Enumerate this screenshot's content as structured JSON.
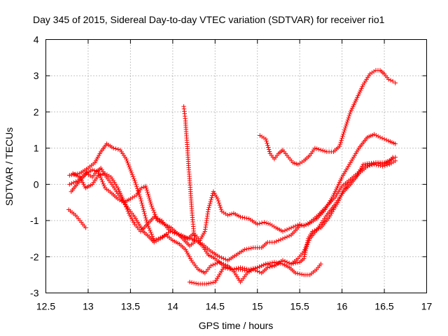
{
  "chart_data": {
    "type": "scatter",
    "title": "Day 345 of 2015, Sidereal Day-to-day VTEC variation (SDTVAR) for receiver rio1",
    "xlabel": "GPS time / hours",
    "ylabel": "SDTVAR / TECUs",
    "xlim": [
      12.5,
      17
    ],
    "ylim": [
      -3,
      4
    ],
    "x_ticks": [
      12.5,
      13,
      13.5,
      14,
      14.5,
      15,
      15.5,
      16,
      16.5,
      17
    ],
    "x_tick_labels": [
      "12.5",
      "13",
      "13.5",
      "14",
      "14.5",
      "15",
      "15.5",
      "16",
      "16.5",
      "17"
    ],
    "y_ticks": [
      -3,
      -2,
      -1,
      0,
      1,
      2,
      3,
      4
    ],
    "y_tick_labels": [
      "-3",
      "-2",
      "-1",
      "0",
      "1",
      "2",
      "3",
      "4"
    ],
    "grid": true,
    "marker": "+",
    "color": "#ff0000",
    "series": [
      {
        "name": "s1",
        "points": [
          [
            12.77,
            -0.7
          ],
          [
            12.85,
            -0.85
          ],
          [
            12.92,
            -1.05
          ],
          [
            12.97,
            -1.2
          ]
        ]
      },
      {
        "name": "s2",
        "points": [
          [
            12.78,
            0.25
          ],
          [
            12.9,
            0.3
          ],
          [
            13.0,
            0.45
          ],
          [
            13.08,
            0.6
          ],
          [
            13.15,
            0.9
          ],
          [
            13.22,
            1.12
          ],
          [
            13.3,
            1.0
          ],
          [
            13.38,
            0.95
          ],
          [
            13.45,
            0.7
          ],
          [
            13.55,
            0.1
          ],
          [
            13.62,
            -0.4
          ],
          [
            13.7,
            -1.1
          ],
          [
            13.78,
            -1.55
          ],
          [
            13.88,
            -1.45
          ],
          [
            13.97,
            -1.3
          ],
          [
            14.05,
            -1.35
          ],
          [
            14.12,
            -1.45
          ],
          [
            14.2,
            -1.5
          ],
          [
            14.28,
            -1.55
          ],
          [
            14.35,
            -1.7
          ],
          [
            14.42,
            -1.95
          ],
          [
            14.5,
            -2.05
          ],
          [
            14.6,
            -2.25
          ],
          [
            14.7,
            -2.35
          ],
          [
            14.8,
            -2.3
          ],
          [
            14.9,
            -2.35
          ],
          [
            15.0,
            -2.3
          ],
          [
            15.1,
            -2.2
          ],
          [
            15.2,
            -2.15
          ],
          [
            15.3,
            -2.2
          ],
          [
            15.38,
            -2.3
          ],
          [
            15.45,
            -2.45
          ],
          [
            15.55,
            -2.5
          ],
          [
            15.62,
            -2.5
          ],
          [
            15.7,
            -2.35
          ],
          [
            15.75,
            -2.2
          ]
        ]
      },
      {
        "name": "s3",
        "points": [
          [
            12.78,
            0.0
          ],
          [
            12.88,
            0.1
          ],
          [
            12.97,
            0.3
          ],
          [
            13.05,
            0.4
          ],
          [
            13.12,
            0.35
          ],
          [
            13.2,
            -0.1
          ],
          [
            13.28,
            -0.25
          ],
          [
            13.35,
            -0.4
          ],
          [
            13.42,
            -0.5
          ],
          [
            13.5,
            -0.4
          ],
          [
            13.57,
            -0.3
          ],
          [
            13.63,
            -0.1
          ],
          [
            13.68,
            -0.05
          ],
          [
            13.75,
            -0.6
          ],
          [
            13.82,
            -1.0
          ],
          [
            13.9,
            -1.1
          ],
          [
            13.98,
            -1.2
          ],
          [
            14.05,
            -1.35
          ],
          [
            14.12,
            -1.5
          ],
          [
            14.2,
            -1.7
          ],
          [
            14.28,
            -1.55
          ],
          [
            14.35,
            -1.65
          ],
          [
            14.45,
            -1.85
          ],
          [
            14.55,
            -2.0
          ],
          [
            14.65,
            -2.1
          ],
          [
            14.75,
            -1.95
          ],
          [
            14.85,
            -1.8
          ],
          [
            14.95,
            -1.75
          ],
          [
            15.05,
            -1.75
          ],
          [
            15.12,
            -1.6
          ],
          [
            15.2,
            -1.6
          ],
          [
            15.3,
            -1.5
          ],
          [
            15.4,
            -1.4
          ],
          [
            15.5,
            -1.15
          ],
          [
            15.6,
            -1.1
          ],
          [
            15.7,
            -0.95
          ],
          [
            15.8,
            -0.7
          ],
          [
            15.9,
            -0.3
          ],
          [
            16.0,
            0.2
          ],
          [
            16.1,
            0.6
          ],
          [
            16.2,
            1.0
          ],
          [
            16.3,
            1.3
          ],
          [
            16.38,
            1.38
          ],
          [
            16.45,
            1.3
          ],
          [
            16.55,
            1.2
          ],
          [
            16.63,
            1.12
          ]
        ]
      },
      {
        "name": "s4",
        "points": [
          [
            12.8,
            -0.2
          ],
          [
            12.9,
            0.1
          ],
          [
            12.98,
            0.3
          ],
          [
            13.05,
            0.2
          ],
          [
            13.1,
            0.35
          ],
          [
            13.15,
            0.45
          ],
          [
            13.2,
            0.25
          ],
          [
            13.28,
            0.0
          ],
          [
            13.35,
            -0.25
          ],
          [
            13.42,
            -0.5
          ],
          [
            13.5,
            -0.75
          ],
          [
            13.55,
            -0.9
          ],
          [
            13.6,
            -1.1
          ],
          [
            13.65,
            -1.3
          ],
          [
            13.72,
            -1.45
          ],
          [
            13.78,
            -1.6
          ],
          [
            13.85,
            -1.5
          ],
          [
            13.92,
            -1.4
          ],
          [
            14.0,
            -1.55
          ],
          [
            14.08,
            -1.65
          ],
          [
            14.15,
            -1.8
          ],
          [
            14.22,
            -2.1
          ],
          [
            14.3,
            -2.35
          ],
          [
            14.38,
            -2.45
          ],
          [
            14.45,
            -2.25
          ],
          [
            14.55,
            -2.15
          ],
          [
            14.65,
            -2.25
          ],
          [
            14.72,
            -2.4
          ],
          [
            14.8,
            -2.7
          ],
          [
            14.88,
            -2.45
          ],
          [
            14.95,
            -2.35
          ],
          [
            15.05,
            -2.45
          ],
          [
            15.12,
            -2.3
          ],
          [
            15.2,
            -2.25
          ],
          [
            15.3,
            -2.1
          ],
          [
            15.4,
            -2.2
          ],
          [
            15.48,
            -2.05
          ],
          [
            15.55,
            -1.85
          ],
          [
            15.62,
            -1.5
          ],
          [
            15.72,
            -1.2
          ],
          [
            15.82,
            -0.85
          ],
          [
            15.92,
            -0.55
          ],
          [
            16.02,
            -0.2
          ],
          [
            16.1,
            0.0
          ],
          [
            16.2,
            0.3
          ],
          [
            16.3,
            0.5
          ],
          [
            16.4,
            0.6
          ],
          [
            16.5,
            0.6
          ],
          [
            16.58,
            0.68
          ],
          [
            16.63,
            0.75
          ]
        ]
      },
      {
        "name": "s5",
        "points": [
          [
            12.82,
            0.3
          ],
          [
            12.9,
            0.2
          ],
          [
            12.97,
            -0.1
          ],
          [
            13.05,
            0.0
          ],
          [
            13.12,
            0.25
          ],
          [
            13.2,
            0.3
          ],
          [
            13.27,
            0.2
          ],
          [
            13.35,
            -0.1
          ],
          [
            13.42,
            -0.45
          ],
          [
            13.48,
            -0.8
          ],
          [
            13.55,
            -1.1
          ],
          [
            13.62,
            -1.3
          ],
          [
            13.7,
            -1.1
          ],
          [
            13.78,
            -0.9
          ],
          [
            13.87,
            -1.0
          ],
          [
            13.95,
            -1.25
          ],
          [
            14.02,
            -1.35
          ],
          [
            14.1,
            -1.4
          ],
          [
            14.18,
            -1.5
          ],
          [
            14.25,
            -1.35
          ],
          [
            14.32,
            -1.55
          ],
          [
            14.38,
            -1.3
          ],
          [
            14.42,
            -0.7
          ],
          [
            14.48,
            -0.2
          ],
          [
            14.53,
            -0.4
          ],
          [
            14.58,
            -0.75
          ],
          [
            14.65,
            -0.85
          ],
          [
            14.72,
            -0.8
          ],
          [
            14.8,
            -0.9
          ],
          [
            14.9,
            -0.95
          ],
          [
            15.0,
            -1.1
          ],
          [
            15.08,
            -1.05
          ],
          [
            15.15,
            -1.1
          ],
          [
            15.22,
            -1.2
          ],
          [
            15.3,
            -1.3
          ],
          [
            15.4,
            -1.2
          ],
          [
            15.5,
            -1.1
          ],
          [
            15.55,
            -1.15
          ],
          [
            15.62,
            -1.05
          ],
          [
            15.72,
            -0.85
          ],
          [
            15.82,
            -0.6
          ],
          [
            15.92,
            -0.35
          ],
          [
            16.0,
            -0.05
          ],
          [
            16.08,
            0.1
          ],
          [
            16.18,
            0.3
          ],
          [
            16.28,
            0.5
          ],
          [
            16.38,
            0.55
          ],
          [
            16.48,
            0.5
          ],
          [
            16.56,
            0.55
          ],
          [
            16.63,
            0.65
          ]
        ]
      },
      {
        "name": "s6",
        "points": [
          [
            14.2,
            -2.7
          ],
          [
            14.3,
            -2.75
          ],
          [
            14.4,
            -2.75
          ],
          [
            14.5,
            -2.7
          ],
          [
            14.6,
            -2.3
          ],
          [
            14.7,
            -2.35
          ],
          [
            14.8,
            -2.35
          ],
          [
            14.9,
            -2.4
          ],
          [
            15.0,
            -2.3
          ],
          [
            15.1,
            -2.2
          ],
          [
            15.2,
            -2.25
          ],
          [
            15.3,
            -2.1
          ],
          [
            15.4,
            -2.2
          ],
          [
            15.5,
            -2.15
          ],
          [
            15.55,
            -2.05
          ],
          [
            15.6,
            -1.5
          ],
          [
            15.65,
            -1.3
          ],
          [
            15.75,
            -1.2
          ],
          [
            15.85,
            -0.9
          ],
          [
            15.95,
            -0.5
          ],
          [
            16.02,
            -0.15
          ],
          [
            16.1,
            0.1
          ],
          [
            16.18,
            0.25
          ],
          [
            16.25,
            0.55
          ],
          [
            16.32,
            0.58
          ],
          [
            16.4,
            0.6
          ],
          [
            16.48,
            0.55
          ],
          [
            16.55,
            0.6
          ],
          [
            16.6,
            0.75
          ]
        ]
      },
      {
        "name": "s7",
        "points": [
          [
            15.03,
            1.35
          ],
          [
            15.1,
            1.25
          ],
          [
            15.15,
            0.85
          ],
          [
            15.2,
            0.7
          ],
          [
            15.25,
            0.85
          ],
          [
            15.3,
            0.95
          ],
          [
            15.35,
            0.8
          ],
          [
            15.42,
            0.6
          ],
          [
            15.48,
            0.55
          ],
          [
            15.55,
            0.65
          ],
          [
            15.62,
            0.8
          ],
          [
            15.68,
            1.0
          ],
          [
            15.75,
            0.95
          ],
          [
            15.82,
            0.9
          ],
          [
            15.9,
            0.9
          ],
          [
            15.97,
            1.05
          ],
          [
            16.03,
            1.5
          ],
          [
            16.1,
            2.0
          ],
          [
            16.18,
            2.4
          ],
          [
            16.25,
            2.75
          ],
          [
            16.33,
            3.05
          ],
          [
            16.4,
            3.15
          ],
          [
            16.45,
            3.15
          ],
          [
            16.5,
            3.05
          ],
          [
            16.55,
            2.9
          ],
          [
            16.6,
            2.85
          ],
          [
            16.63,
            2.8
          ]
        ]
      },
      {
        "name": "s8",
        "points": [
          [
            14.13,
            2.15
          ],
          [
            14.14,
            1.95
          ],
          [
            14.15,
            1.75
          ],
          [
            14.16,
            1.4
          ],
          [
            14.17,
            1.1
          ],
          [
            14.18,
            0.75
          ],
          [
            14.19,
            0.4
          ],
          [
            14.2,
            0.1
          ],
          [
            14.21,
            -0.2
          ],
          [
            14.22,
            -0.55
          ],
          [
            14.23,
            -0.85
          ],
          [
            14.24,
            -1.1
          ],
          [
            14.25,
            -1.35
          ],
          [
            14.26,
            -1.55
          ]
        ]
      }
    ]
  }
}
